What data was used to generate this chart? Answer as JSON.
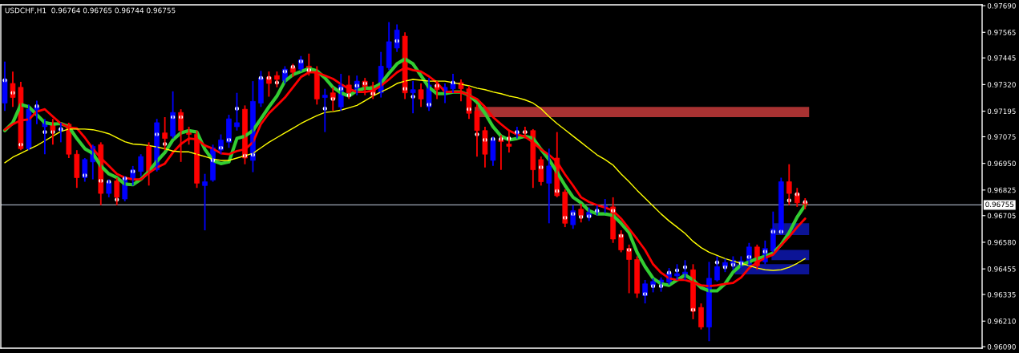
{
  "chart_data": {
    "type": "candlestick",
    "title": "USDCHF,H1  0.96764 0.96765 0.96744 0.96755",
    "categories": [
      null,
      null,
      null,
      null,
      null,
      null,
      null,
      null,
      null,
      null,
      null,
      null,
      null,
      null,
      null,
      null,
      null,
      null,
      null,
      null,
      null,
      null,
      null,
      null,
      null,
      null,
      null,
      null,
      null,
      null,
      null,
      null,
      null,
      null,
      null,
      null,
      null,
      null,
      null,
      null,
      null,
      null,
      null,
      null,
      null,
      null,
      null,
      null,
      null,
      null,
      null,
      null,
      null,
      null,
      null,
      null,
      null,
      null,
      null,
      null,
      null,
      null,
      null,
      null,
      null,
      null,
      null,
      null,
      null,
      null,
      null,
      null,
      null,
      null,
      null,
      null,
      null,
      null,
      null,
      null,
      null,
      null,
      null,
      null,
      null,
      null,
      null,
      null,
      null,
      null,
      null,
      null,
      null,
      null,
      null,
      null,
      null,
      null,
      null,
      null,
      null
    ],
    "ohlc": [
      [
        0.97233,
        0.97428,
        0.97196,
        0.97344
      ],
      [
        0.97325,
        0.97381,
        0.97215,
        0.97259
      ],
      [
        0.97307,
        0.97333,
        0.97012,
        0.97019
      ],
      [
        0.97019,
        0.97226,
        0.97012,
        0.97204
      ],
      [
        0.972,
        0.97244,
        0.97134,
        0.97215
      ],
      [
        0.97122,
        0.97159,
        0.96993,
        0.97148
      ],
      [
        0.97141,
        0.97159,
        0.97038,
        0.97104
      ],
      [
        0.97104,
        0.97141,
        0.97049,
        0.97111
      ],
      [
        0.97134,
        0.97141,
        0.96975,
        0.96993
      ],
      [
        0.96993,
        0.97012,
        0.96835,
        0.96883
      ],
      [
        0.96883,
        0.96975,
        0.96864,
        0.96968
      ],
      [
        0.96957,
        0.97038,
        0.96875,
        0.9703
      ],
      [
        0.97038,
        0.97049,
        0.96754,
        0.96809
      ],
      [
        0.96809,
        0.96875,
        0.96791,
        0.96861
      ],
      [
        0.96868,
        0.96883,
        0.96754,
        0.96791
      ],
      [
        0.96783,
        0.9689,
        0.96772,
        0.96883
      ],
      [
        0.96875,
        0.96938,
        0.96846,
        0.9692
      ],
      [
        0.96912,
        0.96993,
        0.9689,
        0.96982
      ],
      [
        0.9703,
        0.97049,
        0.96846,
        0.96909
      ],
      [
        0.9692,
        0.97159,
        0.96912,
        0.97141
      ],
      [
        0.97093,
        0.97167,
        0.97012,
        0.97067
      ],
      [
        0.97078,
        0.97288,
        0.97067,
        0.97189
      ],
      [
        0.97189,
        0.97204,
        0.96957,
        0.97104
      ],
      [
        0.97104,
        0.97122,
        0.97038,
        0.97086
      ],
      [
        0.97086,
        0.97104,
        0.96835,
        0.96857
      ],
      [
        0.96846,
        0.96901,
        0.96636,
        0.96864
      ],
      [
        0.96872,
        0.97038,
        0.96864,
        0.97023
      ],
      [
        0.97012,
        0.97086,
        0.96993,
        0.9706
      ],
      [
        0.97049,
        0.97178,
        0.97023,
        0.97159
      ],
      [
        0.97122,
        0.97281,
        0.97104,
        0.97141
      ],
      [
        0.97204,
        0.97222,
        0.96946,
        0.96975
      ],
      [
        0.96964,
        0.97336,
        0.96909,
        0.97241
      ],
      [
        0.97233,
        0.97384,
        0.97215,
        0.97351
      ],
      [
        0.97355,
        0.97381,
        0.97263,
        0.97325
      ],
      [
        0.97362,
        0.97381,
        0.97307,
        0.97344
      ],
      [
        0.97336,
        0.97406,
        0.97325,
        0.97392
      ],
      [
        0.97399,
        0.97417,
        0.97355,
        0.97377
      ],
      [
        0.97392,
        0.97454,
        0.97381,
        0.97436
      ],
      [
        0.97406,
        0.97465,
        0.97362,
        0.97381
      ],
      [
        0.97381,
        0.97406,
        0.97226,
        0.97252
      ],
      [
        0.97259,
        0.973,
        0.97097,
        0.9727
      ],
      [
        0.97281,
        0.97307,
        0.97196,
        0.97252
      ],
      [
        0.97215,
        0.9737,
        0.97196,
        0.97318
      ],
      [
        0.97318,
        0.97362,
        0.97252,
        0.97281
      ],
      [
        0.97288,
        0.97362,
        0.9727,
        0.97336
      ],
      [
        0.97336,
        0.97351,
        0.9727,
        0.97307
      ],
      [
        0.97314,
        0.97333,
        0.97252,
        0.9727
      ],
      [
        0.97281,
        0.97473,
        0.97259,
        0.97406
      ],
      [
        0.97399,
        0.97613,
        0.97388,
        0.97521
      ],
      [
        0.97491,
        0.97602,
        0.97473,
        0.97576
      ],
      [
        0.97547,
        0.97565,
        0.97252,
        0.97281
      ],
      [
        0.97281,
        0.97336,
        0.97185,
        0.97296
      ],
      [
        0.97296,
        0.97325,
        0.97215,
        0.97252
      ],
      [
        0.97215,
        0.97351,
        0.97196,
        0.97318
      ],
      [
        0.97318,
        0.97336,
        0.97252,
        0.97296
      ],
      [
        0.97288,
        0.97325,
        0.97233,
        0.97307
      ],
      [
        0.973,
        0.9737,
        0.97281,
        0.97325
      ],
      [
        0.97329,
        0.97344,
        0.97241,
        0.973
      ],
      [
        0.973,
        0.97314,
        0.97159,
        0.97185
      ],
      [
        0.97196,
        0.97226,
        0.96982,
        0.97104
      ],
      [
        0.97104,
        0.97122,
        0.96931,
        0.96993
      ],
      [
        0.96964,
        0.97075,
        0.96938,
        0.9706
      ],
      [
        0.9706,
        0.97082,
        0.9692,
        0.97052
      ],
      [
        0.97041,
        0.97104,
        0.97001,
        0.9703
      ],
      [
        0.97086,
        0.97122,
        0.97067,
        0.97097
      ],
      [
        0.97097,
        0.97122,
        0.97067,
        0.97093
      ],
      [
        0.97104,
        0.97111,
        0.96835,
        0.9692
      ],
      [
        0.96968,
        0.96982,
        0.96846,
        0.96864
      ],
      [
        0.96857,
        0.97019,
        0.96669,
        0.96938
      ],
      [
        0.96975,
        0.97097,
        0.96791,
        0.96798
      ],
      [
        0.96816,
        0.96828,
        0.96651,
        0.96669
      ],
      [
        0.96662,
        0.96754,
        0.96643,
        0.96728
      ],
      [
        0.96735,
        0.96761,
        0.96673,
        0.96706
      ],
      [
        0.96699,
        0.96743,
        0.9668,
        0.96721
      ],
      [
        0.96721,
        0.96754,
        0.96706,
        0.96728
      ],
      [
        0.96743,
        0.96783,
        0.96717,
        0.9675
      ],
      [
        0.96746,
        0.96791,
        0.96577,
        0.96595
      ],
      [
        0.96617,
        0.96636,
        0.96533,
        0.96544
      ],
      [
        0.96551,
        0.96569,
        0.96341,
        0.96499
      ],
      [
        0.96499,
        0.96514,
        0.96319,
        0.96341
      ],
      [
        0.9633,
        0.96403,
        0.96293,
        0.96385
      ],
      [
        0.96378,
        0.96411,
        0.96345,
        0.96396
      ],
      [
        0.96385,
        0.96415,
        0.96348,
        0.96403
      ],
      [
        0.96392,
        0.96459,
        0.96381,
        0.96437
      ],
      [
        0.96422,
        0.96477,
        0.96403,
        0.96433
      ],
      [
        0.96429,
        0.96496,
        0.96403,
        0.9644
      ],
      [
        0.96451,
        0.96477,
        0.96219,
        0.96256
      ],
      [
        0.96274,
        0.96293,
        0.96171,
        0.96182
      ],
      [
        0.96182,
        0.96488,
        0.96116,
        0.96411
      ],
      [
        0.96403,
        0.96514,
        0.96396,
        0.96466
      ],
      [
        0.96466,
        0.96503,
        0.9644,
        0.96485
      ],
      [
        0.96477,
        0.96514,
        0.96451,
        0.96496
      ],
      [
        0.96488,
        0.96514,
        0.96459,
        0.96492
      ],
      [
        0.96477,
        0.96577,
        0.9647,
        0.96558
      ],
      [
        0.96558,
        0.96569,
        0.96451,
        0.9647
      ],
      [
        0.96488,
        0.96588,
        0.96477,
        0.96551
      ],
      [
        0.9654,
        0.96724,
        0.96533,
        0.96643
      ],
      [
        0.96625,
        0.96883,
        0.96614,
        0.96864
      ],
      [
        0.96864,
        0.96946,
        0.96754,
        0.96809
      ],
      [
        0.96809,
        0.96835,
        0.96746,
        0.96765
      ],
      [
        0.96768,
        0.96787,
        0.96735,
        0.96755
      ]
    ],
    "colors": [
      "#0000ff",
      "#ff0000",
      "#ff0000",
      "#0000ff",
      "#0000ff",
      "#0000ff",
      "#ff0000",
      "#0000ff",
      "#ff0000",
      "#ff0000",
      "#0000ff",
      "#0000ff",
      "#ff0000",
      "#0000ff",
      "#ff0000",
      "#0000ff",
      "#0000ff",
      "#0000ff",
      "#ff0000",
      "#0000ff",
      "#ff0000",
      "#0000ff",
      "#ff0000",
      "#ff0000",
      "#ff0000",
      "#0000ff",
      "#0000ff",
      "#0000ff",
      "#0000ff",
      "#0000ff",
      "#ff0000",
      "#0000ff",
      "#0000ff",
      "#ff0000",
      "#ff0000",
      "#0000ff",
      "#ff0000",
      "#0000ff",
      "#ff0000",
      "#ff0000",
      "#0000ff",
      "#ff0000",
      "#0000ff",
      "#ff0000",
      "#0000ff",
      "#ff0000",
      "#ff0000",
      "#0000ff",
      "#0000ff",
      "#0000ff",
      "#ff0000",
      "#0000ff",
      "#ff0000",
      "#0000ff",
      "#ff0000",
      "#0000ff",
      "#0000ff",
      "#ff0000",
      "#ff0000",
      "#ff0000",
      "#ff0000",
      "#0000ff",
      "#ff0000",
      "#ff0000",
      "#0000ff",
      "#ff0000",
      "#ff0000",
      "#ff0000",
      "#0000ff",
      "#ff0000",
      "#ff0000",
      "#0000ff",
      "#ff0000",
      "#0000ff",
      "#0000ff",
      "#0000ff",
      "#ff0000",
      "#ff0000",
      "#ff0000",
      "#ff0000",
      "#0000ff",
      "#0000ff",
      "#0000ff",
      "#0000ff",
      "#0000ff",
      "#0000ff",
      "#ff0000",
      "#ff0000",
      "#0000ff",
      "#0000ff",
      "#0000ff",
      "#0000ff",
      "#0000ff",
      "#0000ff",
      "#ff0000",
      "#0000ff",
      "#0000ff",
      "#0000ff",
      "#ff0000",
      "#ff0000",
      "#ff0000"
    ],
    "series": [
      {
        "type": "line",
        "color": "#32cd32",
        "values": [
          0.97104,
          0.97141,
          0.97226,
          0.97215,
          0.97178,
          0.97141,
          0.97134,
          0.97137,
          0.97122,
          0.97067,
          0.97019,
          0.96997,
          0.96938,
          0.96901,
          0.96883,
          0.96853,
          0.9685,
          0.96875,
          0.96912,
          0.9696,
          0.97001,
          0.9706,
          0.97093,
          0.97104,
          0.97097,
          0.97016,
          0.96964,
          0.96949,
          0.96957,
          0.97067,
          0.97078,
          0.97104,
          0.97159,
          0.97215,
          0.97266,
          0.97336,
          0.97366,
          0.97381,
          0.97395,
          0.97384,
          0.97351,
          0.97307,
          0.97281,
          0.97266,
          0.97292,
          0.97303,
          0.97303,
          0.97325,
          0.97373,
          0.97417,
          0.9744,
          0.97417,
          0.97362,
          0.97307,
          0.97277,
          0.97277,
          0.97285,
          0.97285,
          0.9727,
          0.97237,
          0.97185,
          0.97122,
          0.97078,
          0.9706,
          0.97067,
          0.97078,
          0.97067,
          0.97016,
          0.96968,
          0.96909,
          0.96846,
          0.96791,
          0.96765,
          0.96728,
          0.96713,
          0.96713,
          0.96706,
          0.96669,
          0.96625,
          0.96533,
          0.96466,
          0.96411,
          0.96385,
          0.96378,
          0.96403,
          0.96426,
          0.96403,
          0.96367,
          0.96352,
          0.96352,
          0.96385,
          0.9644,
          0.96474,
          0.96488,
          0.96503,
          0.96514,
          0.96529,
          0.96569,
          0.96625,
          0.96698,
          0.96754
        ]
      },
      {
        "type": "line",
        "color": "#ff0000",
        "values": [
          0.97108,
          0.97134,
          0.97152,
          0.97156,
          0.97193,
          0.97204,
          0.9717,
          0.97137,
          0.97119,
          0.97115,
          0.97071,
          0.97019,
          0.96975,
          0.96938,
          0.96901,
          0.96883,
          0.96875,
          0.96875,
          0.96905,
          0.96931,
          0.96949,
          0.97001,
          0.97041,
          0.97067,
          0.97063,
          0.97034,
          0.97019,
          0.96997,
          0.96993,
          0.97008,
          0.97016,
          0.97049,
          0.97134,
          0.97185,
          0.97222,
          0.97259,
          0.97307,
          0.97355,
          0.97377,
          0.97377,
          0.97362,
          0.97347,
          0.97322,
          0.973,
          0.97285,
          0.97285,
          0.97292,
          0.97314,
          0.97344,
          0.97377,
          0.97399,
          0.97388,
          0.97381,
          0.97358,
          0.97329,
          0.97285,
          0.97285,
          0.97285,
          0.9727,
          0.97252,
          0.97215,
          0.97167,
          0.97134,
          0.97104,
          0.97086,
          0.97075,
          0.97049,
          0.97016,
          0.9699,
          0.96957,
          0.96898,
          0.96846,
          0.96791,
          0.96769,
          0.96754,
          0.96743,
          0.96728,
          0.96691,
          0.96643,
          0.96595,
          0.96544,
          0.96477,
          0.96437,
          0.96411,
          0.96403,
          0.96403,
          0.96392,
          0.96378,
          0.96374,
          0.96378,
          0.96385,
          0.96389,
          0.96415,
          0.96459,
          0.96485,
          0.96507,
          0.96522,
          0.96566,
          0.96606,
          0.96651,
          0.96691
        ]
      },
      {
        "type": "line",
        "color": "#ffff00",
        "values": [
          0.96953,
          0.96979,
          0.96997,
          0.97016,
          0.97034,
          0.97056,
          0.97078,
          0.971,
          0.97111,
          0.97111,
          0.97111,
          0.97108,
          0.971,
          0.97089,
          0.97071,
          0.97052,
          0.97041,
          0.97038,
          0.97034,
          0.97027,
          0.97019,
          0.97008,
          0.97004,
          0.97004,
          0.96993,
          0.96982,
          0.96971,
          0.96964,
          0.96964,
          0.96975,
          0.96986,
          0.96997,
          0.97023,
          0.97049,
          0.97071,
          0.97093,
          0.97115,
          0.97137,
          0.97156,
          0.97174,
          0.97189,
          0.97193,
          0.972,
          0.97211,
          0.97222,
          0.97244,
          0.97266,
          0.97285,
          0.97303,
          0.97325,
          0.97336,
          0.97344,
          0.9734,
          0.97336,
          0.97336,
          0.97336,
          0.97329,
          0.97322,
          0.97314,
          0.97303,
          0.97296,
          0.97285,
          0.97277,
          0.97266,
          0.97259,
          0.97248,
          0.97233,
          0.97207,
          0.9717,
          0.97137,
          0.97108,
          0.97078,
          0.97049,
          0.97019,
          0.9699,
          0.96968,
          0.96942,
          0.96901,
          0.96864,
          0.96824,
          0.96787,
          0.9675,
          0.96713,
          0.9668,
          0.96651,
          0.96621,
          0.96584,
          0.96555,
          0.96533,
          0.96518,
          0.96503,
          0.96492,
          0.96481,
          0.9647,
          0.96459,
          0.96451,
          0.96448,
          0.96451,
          0.96463,
          0.96481,
          0.96503
        ]
      },
      {
        "type": "scatter",
        "color": "#ffffff",
        "marker": "circle",
        "values": [
          0.9734,
          0.97281,
          0.97038,
          null,
          0.97218,
          0.97097,
          0.97097,
          0.97111,
          null,
          null,
          0.96894,
          null,
          0.96868,
          0.96864,
          0.9678,
          0.96879,
          0.96912,
          null,
          null,
          0.97086,
          0.97041,
          0.97167,
          0.97167,
          null,
          null,
          null,
          0.96964,
          0.97023,
          0.9706,
          0.97207,
          0.96986,
          0.9699,
          0.97351,
          0.97351,
          0.97329,
          0.97381,
          0.97403,
          0.97428,
          0.97388,
          null,
          0.97207,
          0.97252,
          0.973,
          0.9727,
          0.97314,
          0.97325,
          0.97277,
          null,
          null,
          0.97524,
          0.973,
          0.97263,
          null,
          0.97226,
          0.97314,
          null,
          0.97329,
          null,
          0.97204,
          0.97086,
          0.9706,
          0.97064,
          0.97064,
          0.97067,
          0.97097,
          0.97097,
          null,
          0.96931,
          null,
          0.9682,
          0.96695,
          0.96713,
          0.96699,
          0.96702,
          0.96728,
          null,
          0.96728,
          0.9661,
          0.96544,
          null,
          0.96337,
          0.96374,
          0.96374,
          0.96437,
          0.96448,
          0.96463,
          0.96263,
          null,
          null,
          0.96485,
          0.96463,
          0.96474,
          0.96481,
          0.96511,
          null,
          0.96536,
          0.96629,
          0.96629,
          0.96776,
          0.96805,
          0.96769
        ]
      }
    ],
    "ylim": [
      0.96083,
      0.97694
    ],
    "yticks": [
      {
        "value": 0.9769,
        "label": "0.97690"
      },
      0.97565,
      0.97445,
      {
        "value": 0.9732,
        "label": "0.97320"
      },
      0.97195,
      0.97075,
      {
        "value": 0.9695,
        "label": "0.96950"
      },
      0.96825,
      0.96705,
      {
        "value": 0.9658,
        "label": "0.96580"
      },
      0.96455,
      0.96335,
      {
        "value": 0.9621,
        "label": "0.96210"
      },
      {
        "value": 0.9609,
        "label": "0.96090"
      }
    ],
    "ref_lines": [
      {
        "axis": "y",
        "value": 0.96755,
        "label": "0.96755",
        "color": "#a0a8b8"
      }
    ],
    "bands": [
      {
        "axis": "y",
        "from": 0.97167,
        "to": 0.97215,
        "color": "#a83232"
      },
      {
        "axis": "y",
        "from": 0.96614,
        "to": 0.96669,
        "color": "#0c1496"
      },
      {
        "axis": "y",
        "from": 0.96496,
        "to": 0.96544,
        "color": "#0c1496"
      },
      {
        "axis": "y",
        "from": 0.96429,
        "to": 0.96477,
        "color": "#0c1496"
      }
    ],
    "tick_labels": "y",
    "grid": false,
    "line_style": "solid"
  }
}
